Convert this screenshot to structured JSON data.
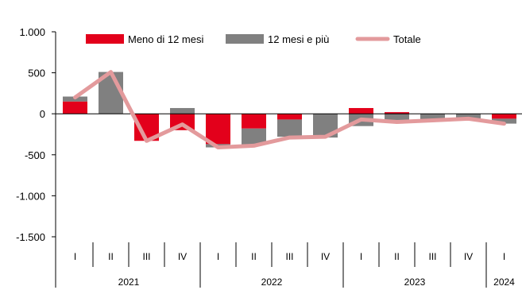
{
  "chart_data": {
    "type": "bar",
    "stacked": true,
    "ylim": [
      -1500,
      1000
    ],
    "yticks": [
      1000,
      500,
      0,
      -500,
      -1000,
      -1500
    ],
    "ytick_labels": [
      "1.000",
      "500",
      "0",
      "-500",
      "-1.000",
      "-1.500"
    ],
    "categories": [
      "I",
      "II",
      "III",
      "IV",
      "I",
      "II",
      "III",
      "IV",
      "I",
      "II",
      "III",
      "IV",
      "I"
    ],
    "years": [
      {
        "label": "2021",
        "count": 4
      },
      {
        "label": "2022",
        "count": 4
      },
      {
        "label": "2023",
        "count": 4
      },
      {
        "label": "2024",
        "count": 1
      }
    ],
    "series": [
      {
        "name": "Meno di 12 mesi",
        "kind": "bar",
        "color": "#e3001b",
        "values": [
          150,
          0,
          -330,
          -200,
          -370,
          -180,
          -70,
          0,
          70,
          20,
          0,
          0,
          -60
        ]
      },
      {
        "name": "12 mesi e più",
        "kind": "bar",
        "color": "#808080",
        "values": [
          60,
          510,
          0,
          70,
          -40,
          -200,
          -210,
          -290,
          -150,
          -110,
          -70,
          -60,
          -60
        ]
      },
      {
        "name": "Totale",
        "kind": "line",
        "color": "#e39a9c",
        "values": [
          200,
          510,
          -330,
          -130,
          -410,
          -390,
          -290,
          -280,
          -70,
          -100,
          -80,
          -60,
          -120
        ]
      }
    ],
    "legend_position": "top",
    "grid": false
  }
}
